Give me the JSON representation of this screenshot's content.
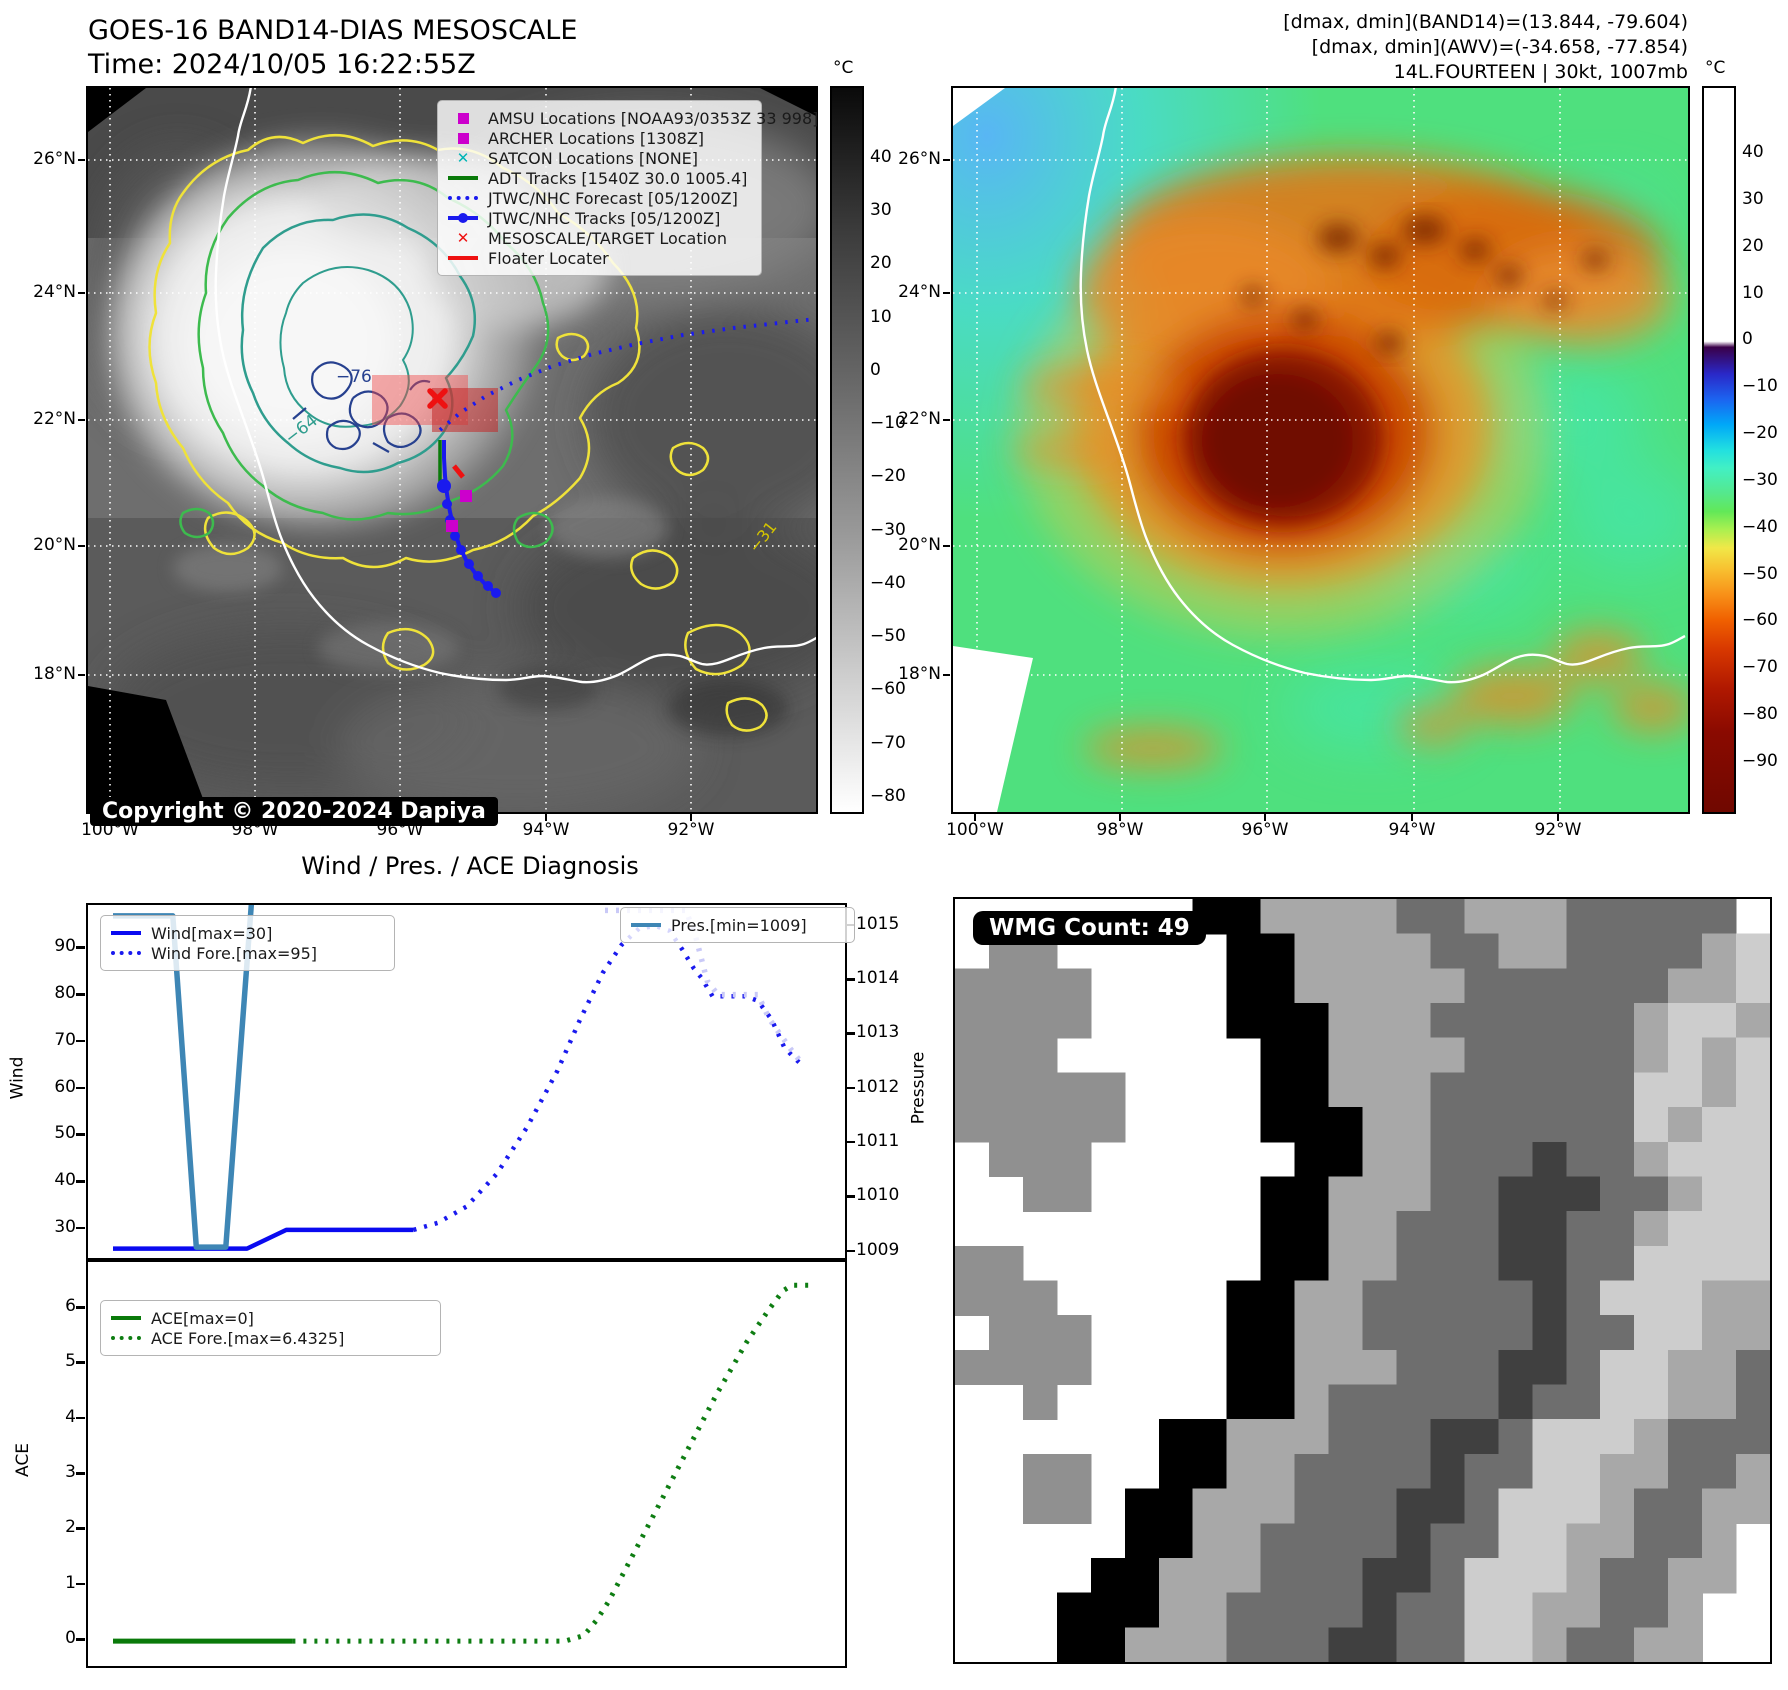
{
  "header": {
    "left": {
      "title": "GOES-16 BAND14-DIAS MESOSCALE",
      "time": "Time: 2024/10/05 16:22:55Z"
    },
    "right": {
      "line1": "[dmax, dmin](BAND14)=(13.844, -79.604)",
      "line2": "[dmax, dmin](AWV)=(-34.658, -77.854)",
      "line3": "14L.FOURTEEN | 30kt, 1007mb"
    }
  },
  "left_map": {
    "legend_items": [
      {
        "marker": "square",
        "color": "#cc00cc",
        "label": "AMSU Locations [NOAA93/0353Z 33 998]"
      },
      {
        "marker": "square",
        "color": "#cc00cc",
        "label": "ARCHER Locations [1308Z]"
      },
      {
        "marker": "x",
        "color": "#00b5b5",
        "label": "SATCON Locations [NONE]"
      },
      {
        "marker": "line",
        "color": "#0a7a0a",
        "label": "ADT Tracks [1540Z 30.0 1005.4]"
      },
      {
        "marker": "dotted",
        "color": "#1a1aee",
        "label": "JTWC/NHC Forecast [05/1200Z]"
      },
      {
        "marker": "linedot",
        "color": "#1a1aee",
        "label": "JTWC/NHC Tracks [05/1200Z]"
      },
      {
        "marker": "x",
        "color": "#ee1111",
        "label": "MESOSCALE/TARGET Location"
      },
      {
        "marker": "line",
        "color": "#ee1111",
        "label": "Floater Locater"
      }
    ],
    "copyright": "Copyright © 2020-2024 Dapiya",
    "contour_labels": {
      "inner": "−76",
      "mid": "−64",
      "outer": "−31"
    },
    "lat_ticks": [
      "26°N",
      "24°N",
      "22°N",
      "20°N",
      "18°N"
    ],
    "lon_ticks": [
      "100°W",
      "98°W",
      "96°W",
      "94°W",
      "92°W"
    ],
    "colorbar": {
      "unit": "°C",
      "ticks": [
        "40",
        "30",
        "20",
        "10",
        "0",
        "−10",
        "−20",
        "−30",
        "−40",
        "−50",
        "−60",
        "−70",
        "−80"
      ]
    }
  },
  "right_map": {
    "lat_ticks": [
      "26°N",
      "24°N",
      "22°N",
      "20°N",
      "18°N"
    ],
    "lon_ticks": [
      "100°W",
      "98°W",
      "96°W",
      "94°W",
      "92°W"
    ],
    "colorbar": {
      "unit": "°C",
      "ticks": [
        "40",
        "30",
        "20",
        "10",
        "0",
        "−10",
        "−20",
        "−30",
        "−40",
        "−50",
        "−60",
        "−70",
        "−80",
        "−90"
      ]
    }
  },
  "diagnosis": {
    "title": "Wind / Pres. / ACE Diagnosis",
    "wind_axis_label": "Wind",
    "pressure_axis_label": "Pressure",
    "ace_axis_label": "ACE",
    "legends": {
      "wind": [
        {
          "label": "Wind[max=30]"
        },
        {
          "label": "Wind Fore.[max=95]"
        }
      ],
      "pres": [
        {
          "label": "Pres.[min=1009]"
        }
      ],
      "ace": [
        {
          "label": "ACE[max=0]"
        },
        {
          "label": "ACE Fore.[max=6.4325]"
        }
      ]
    }
  },
  "chart_data": [
    {
      "type": "line",
      "title": "Wind / Pres. / ACE Diagnosis",
      "panel": "wind-pressure",
      "ylabel": "Wind",
      "y2label": "Pressure",
      "ylim": [
        24,
        99.5
      ],
      "y2lim": [
        1008.9,
        1015.4
      ],
      "yticks": [
        30,
        40,
        50,
        60,
        70,
        80,
        90
      ],
      "y2ticks": [
        1009,
        1010,
        1011,
        1012,
        1013,
        1014,
        1015
      ],
      "xlim": [
        0,
        1
      ],
      "grid": false,
      "series": [
        {
          "name": "Wind[max=30]",
          "axis": "y",
          "style": "solid",
          "color": "#0a0af0",
          "width": 4.5,
          "points": [
            [
              0.033,
              26
            ],
            [
              0.21,
              26
            ],
            [
              0.262,
              30
            ],
            [
              0.43,
              30
            ]
          ]
        },
        {
          "name": "Wind Fore.[max=95]",
          "axis": "y",
          "style": "dotted",
          "color": "#1a1aee",
          "width": 4.5,
          "points": [
            [
              0.43,
              30
            ],
            [
              0.462,
              31.5
            ],
            [
              0.5,
              35
            ],
            [
              0.54,
              42
            ],
            [
              0.58,
              52
            ],
            [
              0.62,
              64
            ],
            [
              0.65,
              75
            ],
            [
              0.68,
              85
            ],
            [
              0.705,
              91
            ],
            [
              0.728,
              94.5
            ],
            [
              0.75,
              95
            ],
            [
              0.768,
              94
            ],
            [
              0.785,
              90
            ],
            [
              0.8,
              86
            ],
            [
              0.81,
              84
            ],
            [
              0.825,
              80
            ],
            [
              0.868,
              80
            ],
            [
              0.885,
              79
            ],
            [
              0.903,
              75
            ],
            [
              0.92,
              69
            ],
            [
              0.935,
              66.5
            ],
            [
              0.945,
              65
            ]
          ]
        },
        {
          "name": "Pres.[min=1009]",
          "axis": "y2",
          "style": "solid",
          "color": "#3e86b5",
          "width": 5.5,
          "points": [
            [
              0.033,
              1015.2
            ],
            [
              0.112,
              1015.2
            ],
            [
              0.143,
              1009.1
            ],
            [
              0.182,
              1009.1
            ],
            [
              0.216,
              1015.45
            ]
          ]
        },
        {
          "name": "Pres. Fore.",
          "axis": "y2",
          "style": "dotted",
          "color": "#c9c9f7",
          "width": 5.5,
          "points": [
            [
              0.683,
              1015.3
            ],
            [
              0.79,
              1015.3
            ],
            [
              0.803,
              1014.8
            ],
            [
              0.818,
              1014.0
            ],
            [
              0.832,
              1013.75
            ],
            [
              0.885,
              1013.75
            ],
            [
              0.9,
              1013.3
            ],
            [
              0.928,
              1012.75
            ],
            [
              0.945,
              1012.45
            ]
          ]
        }
      ]
    },
    {
      "type": "line",
      "panel": "ace",
      "ylabel": "ACE",
      "ylim": [
        -0.45,
        6.85
      ],
      "yticks": [
        0,
        1,
        2,
        3,
        4,
        5,
        6
      ],
      "xlim": [
        0,
        1
      ],
      "grid": false,
      "series": [
        {
          "name": "ACE[max=0]",
          "axis": "y",
          "style": "solid",
          "color": "#0a7a0a",
          "width": 5,
          "points": [
            [
              0.033,
              0
            ],
            [
              0.27,
              0
            ]
          ]
        },
        {
          "name": "ACE Fore.[max=6.4325]",
          "axis": "y",
          "style": "dotted",
          "color": "#0e7d12",
          "width": 5,
          "points": [
            [
              0.27,
              0
            ],
            [
              0.63,
              0
            ],
            [
              0.655,
              0.1
            ],
            [
              0.672,
              0.38
            ],
            [
              0.688,
              0.72
            ],
            [
              0.71,
              1.3
            ],
            [
              0.75,
              2.35
            ],
            [
              0.79,
              3.4
            ],
            [
              0.83,
              4.45
            ],
            [
              0.87,
              5.4
            ],
            [
              0.9,
              6.0
            ],
            [
              0.918,
              6.33
            ],
            [
              0.93,
              6.43
            ],
            [
              0.955,
              6.43
            ]
          ]
        }
      ]
    }
  ],
  "wmg": {
    "badge": "WMG Count: 49",
    "palette": {
      "0": "#ffffff",
      "1": "#909090",
      "2": "#000000",
      "3": "#a8a8a8",
      "4": "#6e6e6e",
      "5": "#cdcdcd",
      "6": "#404040"
    },
    "rows": [
      "000000022333344333444440",
      "011000002233334433444435",
      "111100002233333444444335",
      "111100002223334444443553",
      "111000000223333444443535",
      "111110000223334444445535",
      "111110000222334444445355",
      "011100000022334446443555",
      "001100000223334466644355",
      "000000000223344466443555",
      "110000000223344466445555",
      "111000002233444446455533",
      "011100002233444446445533",
      "111100072233344466455334",
      "001000072234444464455334",
      "000000223334446645553444",
      "001100223344446445533443",
      "001102233344466455534433",
      "000002233444464455334430",
      "000022333444664555344330",
      "000222334444644553344300",
      "000223334446644553443300"
    ]
  }
}
